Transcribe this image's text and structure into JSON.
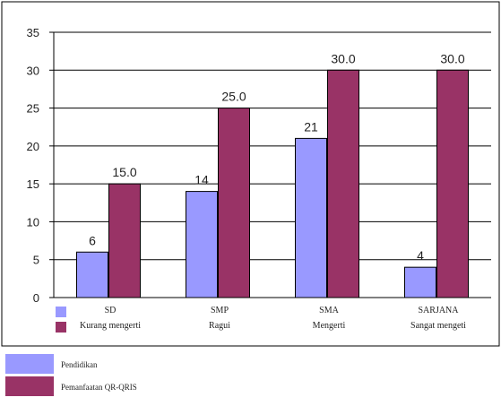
{
  "chart_data": {
    "type": "bar",
    "categories": [
      "SD",
      "SMP",
      "SMA",
      "SARJANA"
    ],
    "category_sublabels": [
      "Kurang mengerti",
      "Ragui",
      "Mengerti",
      "Sangat mengeti"
    ],
    "series": [
      {
        "name": "Pendidikan",
        "values": [
          6,
          14,
          21,
          4
        ],
        "labels": [
          "6",
          "14",
          "21",
          "4"
        ],
        "color": "#9999ff"
      },
      {
        "name": "Pemanfaatan QR-QRIS",
        "values": [
          15,
          25,
          30,
          30
        ],
        "labels": [
          "15.0",
          "25.0",
          "30.0",
          "30.0"
        ],
        "color": "#993366"
      }
    ],
    "ylim": [
      0,
      35
    ],
    "yticks": [
      0,
      5,
      10,
      15,
      20,
      25,
      30,
      35
    ],
    "grid": true,
    "legend_position": "bottom-left",
    "title": "",
    "xlabel": "",
    "ylabel": ""
  }
}
